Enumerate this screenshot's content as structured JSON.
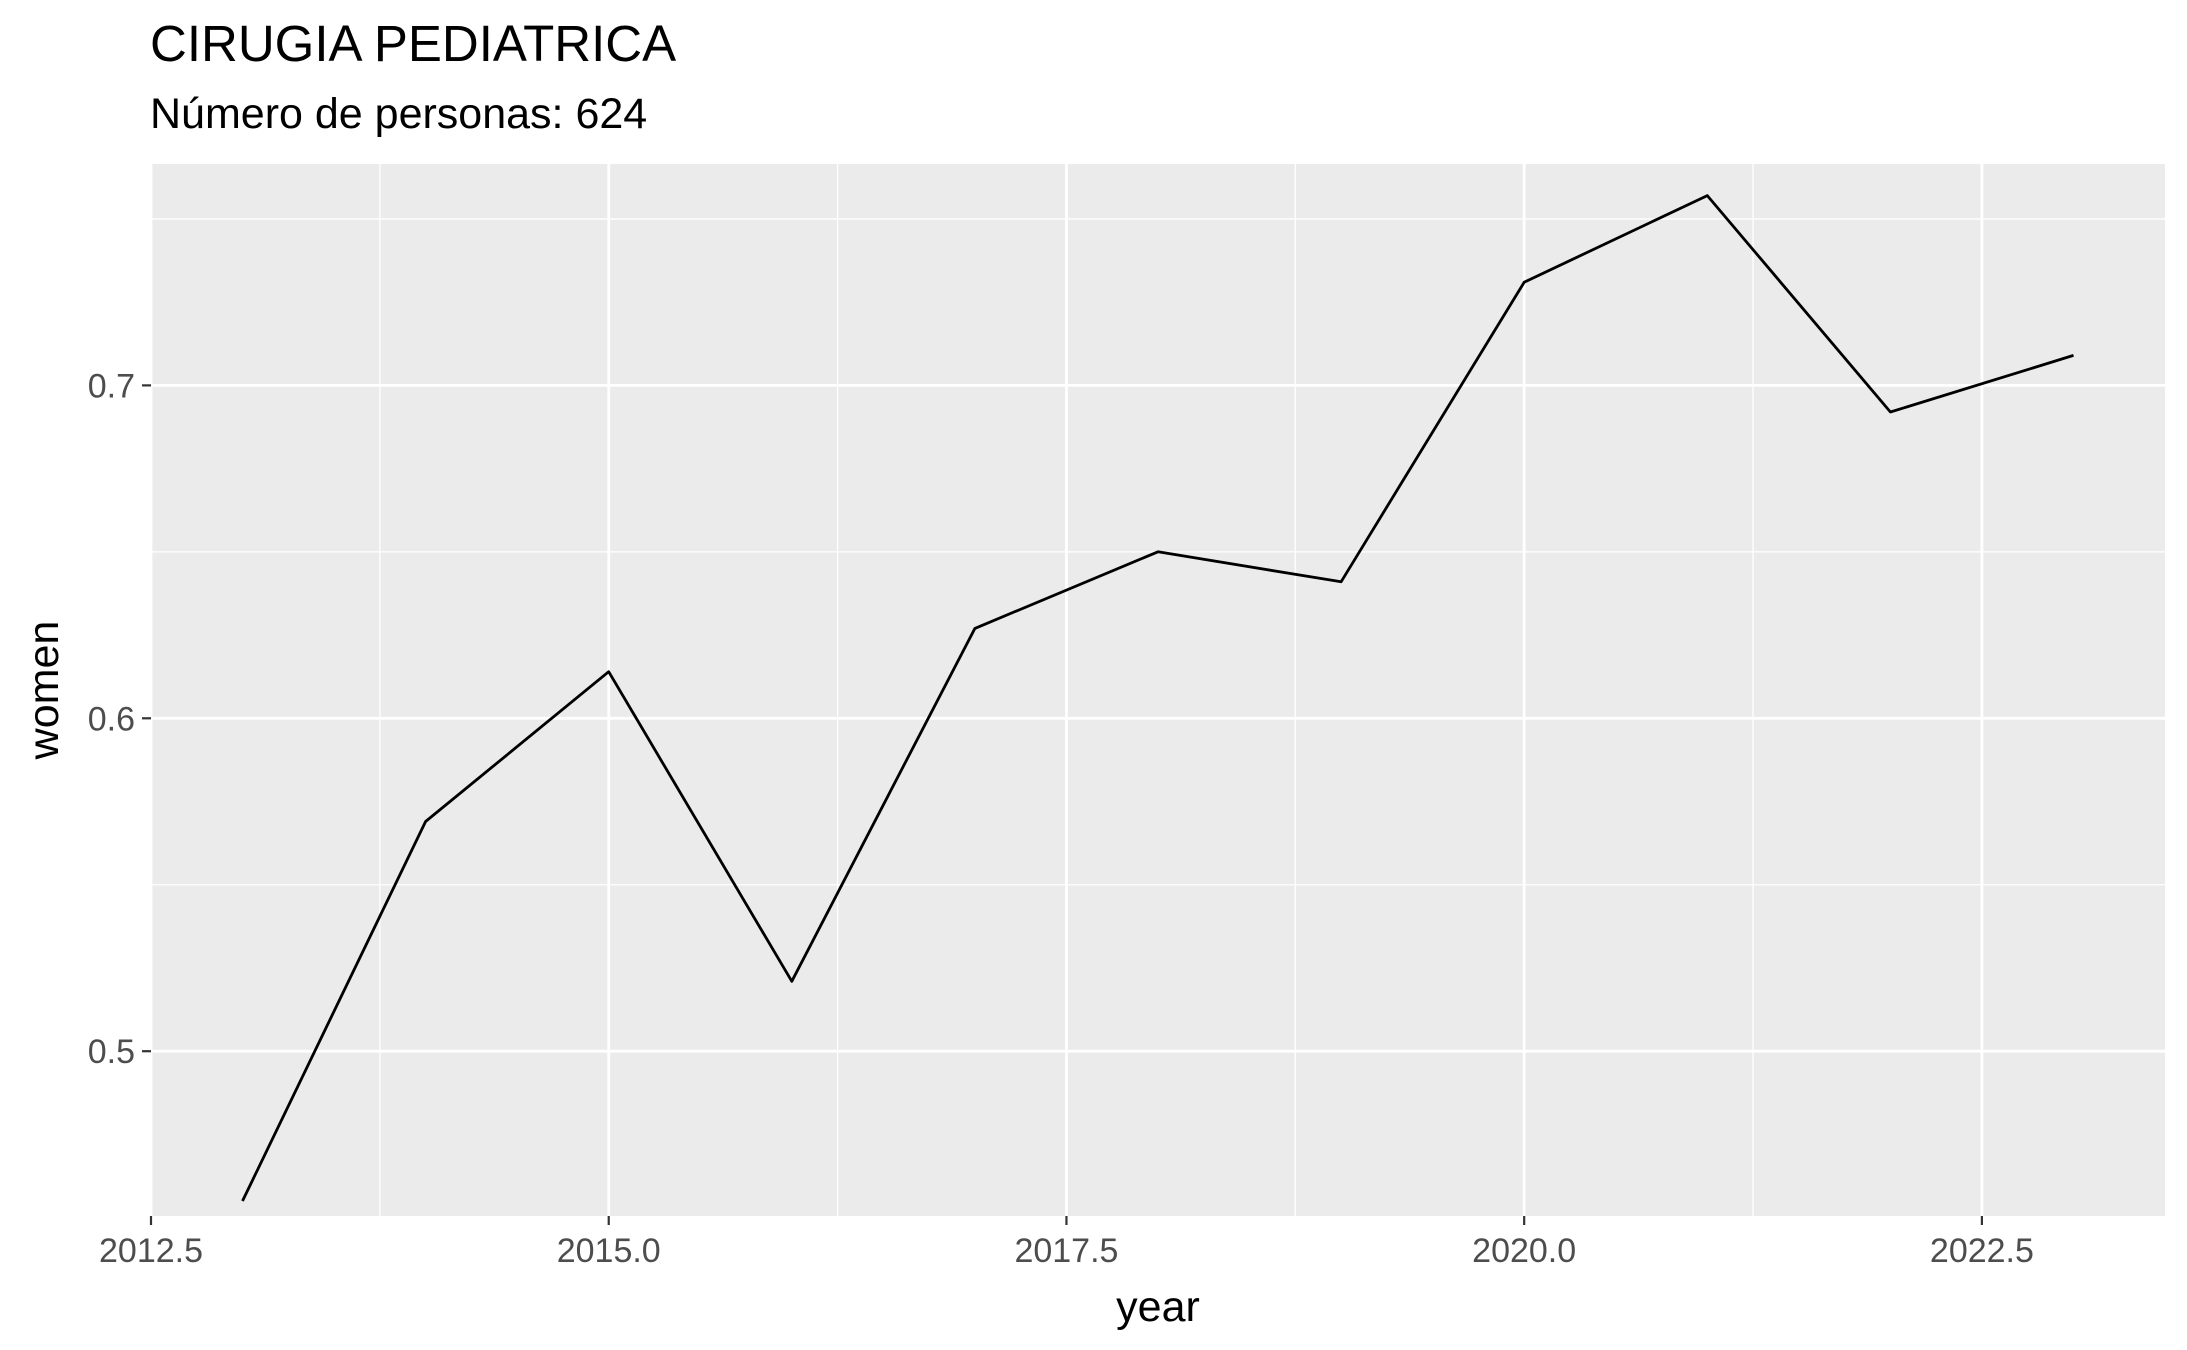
{
  "chart_data": {
    "type": "line",
    "title": "CIRUGIA PEDIATRICA",
    "subtitle": "Número de personas: 624",
    "xlabel": "year",
    "ylabel": "women",
    "xlim": [
      2012.5,
      2023.5
    ],
    "ylim": [
      0.4505,
      0.7665
    ],
    "x_ticks": [
      2012.5,
      2015.0,
      2017.5,
      2020.0,
      2022.5
    ],
    "x_tick_labels": [
      "2012.5",
      "2015.0",
      "2017.5",
      "2020.0",
      "2022.5"
    ],
    "y_ticks": [
      0.5,
      0.6,
      0.7
    ],
    "y_tick_labels": [
      "0.5",
      "0.6",
      "0.7"
    ],
    "grid": true,
    "panel_color": "#ebebeb",
    "grid_color": "#ffffff",
    "line_color": "#000000",
    "series": [
      {
        "x": [
          2013,
          2014,
          2015,
          2016,
          2017,
          2018,
          2019,
          2020,
          2021,
          2022,
          2023
        ],
        "values": [
          0.455,
          0.569,
          0.614,
          0.521,
          0.627,
          0.65,
          0.641,
          0.731,
          0.757,
          0.692,
          0.709
        ]
      }
    ]
  }
}
